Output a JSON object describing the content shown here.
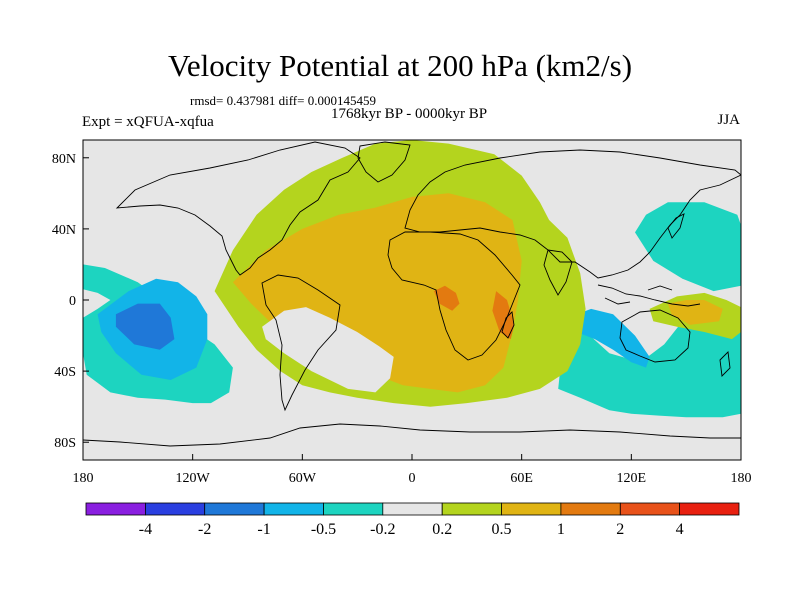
{
  "chart_data": {
    "type": "heatmap",
    "title": "Velocity Potential at 200 hPa (km2/s)",
    "stats_text": "rmsd= 0.437981 diff= 0.000145459",
    "period_text": "1768kyr BP - 0000kyr BP",
    "experiment_text": "Expt = xQFUA-xqfua",
    "season_text": "JJA",
    "x_range": [
      -180,
      180
    ],
    "y_range": [
      -90,
      90
    ],
    "x_ticks": [
      {
        "value": -180,
        "label": "180"
      },
      {
        "value": -120,
        "label": "120W"
      },
      {
        "value": -60,
        "label": "60W"
      },
      {
        "value": 0,
        "label": "0"
      },
      {
        "value": 60,
        "label": "60E"
      },
      {
        "value": 120,
        "label": "120E"
      },
      {
        "value": 180,
        "label": "180"
      }
    ],
    "y_ticks": [
      {
        "value": 80,
        "label": "80N"
      },
      {
        "value": 40,
        "label": "40N"
      },
      {
        "value": 0,
        "label": "0"
      },
      {
        "value": -40,
        "label": "40S"
      },
      {
        "value": -80,
        "label": "80S"
      }
    ],
    "levels": [
      "-4",
      "-2",
      "-1",
      "-0.5",
      "-0.2",
      "0.2",
      "0.5",
      "1",
      "2",
      "4"
    ],
    "colors": [
      "#8a1fe0",
      "#2a3fe0",
      "#1f78d8",
      "#12b4e8",
      "#1dd4c0",
      "#e6e6e6",
      "#b4d41e",
      "#e0b414",
      "#e37a10",
      "#e8521a",
      "#e82010"
    ],
    "regions": [
      {
        "name": "pacific-negative-outer",
        "class": -1,
        "lon": [
          -180,
          -178,
          -165,
          -150,
          -135,
          -120,
          -110,
          -100,
          -98,
          -108,
          -118,
          -130,
          -150,
          -168,
          -180,
          -180,
          -172,
          -165,
          -172,
          -180
        ],
        "lat": [
          -30,
          -42,
          -52,
          -55,
          -56,
          -58,
          -58,
          -52,
          -38,
          -25,
          -18,
          -5,
          10,
          18,
          20,
          6,
          4,
          0,
          -5,
          -10
        ]
      },
      {
        "name": "pacific-negative-mid",
        "class": -2,
        "lon": [
          -172,
          -155,
          -140,
          -128,
          -118,
          -112,
          -112,
          -118,
          -132,
          -148,
          -162,
          -170
        ],
        "lat": [
          -8,
          5,
          12,
          10,
          2,
          -8,
          -22,
          -38,
          -45,
          -42,
          -30,
          -18
        ]
      },
      {
        "name": "pacific-negative-core",
        "class": -3,
        "lon": [
          -162,
          -150,
          -138,
          -132,
          -130,
          -138,
          -152,
          -162
        ],
        "lat": [
          -8,
          -2,
          -2,
          -10,
          -22,
          -28,
          -25,
          -15
        ]
      },
      {
        "name": "indian-west-pacific-negative",
        "class": -1,
        "lon": [
          80,
          92,
          108,
          120,
          135,
          150,
          170,
          180,
          180,
          165,
          148,
          138,
          125,
          108,
          92,
          82
        ],
        "lat": [
          -50,
          -55,
          -62,
          -64,
          -65,
          -66,
          -66,
          -64,
          -6,
          -2,
          -12,
          -25,
          -35,
          -30,
          -15,
          -30
        ]
      },
      {
        "name": "north-pacific-negative",
        "class": -1,
        "lon": [
          122,
          128,
          140,
          160,
          178,
          180,
          180,
          165,
          148,
          132
        ],
        "lat": [
          38,
          48,
          55,
          55,
          48,
          42,
          8,
          5,
          12,
          22
        ]
      },
      {
        "name": "maritime-negative",
        "class": -2,
        "lon": [
          85,
          98,
          110,
          122,
          130,
          128,
          120,
          110,
          100,
          90
        ],
        "lat": [
          -10,
          -5,
          -8,
          -20,
          -32,
          -38,
          -35,
          -28,
          -22,
          -18
        ]
      },
      {
        "name": "atlantic-africa-positive-outer",
        "class": 1,
        "lon": [
          -108,
          -98,
          -85,
          -70,
          -55,
          -38,
          -20,
          0,
          20,
          45,
          60,
          70,
          75,
          85,
          92,
          95,
          92,
          85,
          70,
          52,
          30,
          10,
          -10,
          -30,
          -45,
          -60,
          -72,
          -85,
          -95
        ],
        "lat": [
          5,
          28,
          48,
          62,
          72,
          80,
          88,
          90,
          88,
          82,
          70,
          55,
          45,
          35,
          15,
          -5,
          -25,
          -40,
          -50,
          -55,
          -58,
          -60,
          -58,
          -55,
          -52,
          -48,
          -40,
          -28,
          -15
        ]
      },
      {
        "name": "atlantic-africa-positive-mid",
        "class": 2,
        "lon": [
          -98,
          -80,
          -60,
          -40,
          -20,
          0,
          20,
          40,
          55,
          60,
          58,
          55,
          50,
          40,
          25,
          10,
          -5,
          -25,
          -40,
          -55,
          -68,
          -78,
          -88
        ],
        "lat": [
          10,
          28,
          40,
          48,
          52,
          58,
          60,
          55,
          45,
          22,
          0,
          -18,
          -38,
          -48,
          -52,
          -50,
          -48,
          -40,
          -36,
          -30,
          -22,
          -12,
          -2
        ]
      },
      {
        "name": "africa-positive-core-1",
        "class": 3,
        "lon": [
          12,
          18,
          24,
          26,
          22,
          15
        ],
        "lat": [
          5,
          8,
          4,
          -2,
          -6,
          -2
        ]
      },
      {
        "name": "africa-positive-core-2",
        "class": 3,
        "lon": [
          46,
          52,
          56,
          54,
          48,
          44
        ],
        "lat": [
          5,
          0,
          -14,
          -22,
          -18,
          -6
        ]
      },
      {
        "name": "south-america-neutral",
        "class": 0,
        "lon": [
          -82,
          -70,
          -58,
          -45,
          -30,
          -18,
          -10,
          -12,
          -20,
          -35,
          -55,
          -70,
          -80
        ],
        "lat": [
          -15,
          -6,
          -4,
          -10,
          -18,
          -26,
          -32,
          -44,
          -52,
          -50,
          -40,
          -30,
          -22
        ]
      },
      {
        "name": "west-pacific-positive",
        "class": 1,
        "lon": [
          130,
          145,
          160,
          172,
          180,
          180,
          175,
          160,
          145,
          132
        ],
        "lat": [
          -5,
          2,
          4,
          0,
          -4,
          -18,
          -22,
          -18,
          -15,
          -12
        ]
      },
      {
        "name": "west-pacific-positive-core",
        "class": 2,
        "lon": [
          140,
          150,
          160,
          170,
          168,
          152,
          142
        ],
        "lat": [
          -2,
          0,
          0,
          -5,
          -12,
          -14,
          -8
        ]
      }
    ]
  }
}
